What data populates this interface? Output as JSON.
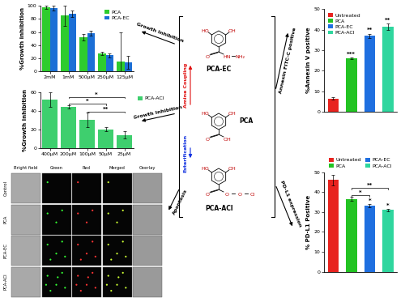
{
  "chart_data": [
    {
      "type": "bar",
      "y_label": "%Growth inhibition",
      "categories": [
        "2mM",
        "1mM",
        "500μM",
        "250μM",
        "125μM"
      ],
      "series": [
        {
          "name": "PCA",
          "color": "#2ecc2e",
          "values": [
            98,
            85,
            52,
            27,
            15
          ],
          "errors": [
            3,
            15,
            5,
            3,
            45
          ]
        },
        {
          "name": "PCA-EC",
          "color": "#1c6fd6",
          "values": [
            97,
            88,
            58,
            24,
            13
          ],
          "errors": [
            4,
            5,
            4,
            3,
            10
          ]
        }
      ],
      "ylim": [
        0,
        100
      ],
      "yticks": [
        0,
        20,
        40,
        60,
        80,
        100
      ],
      "legend": "upper right"
    },
    {
      "type": "bar",
      "y_label": "%Growth inhibition",
      "categories": [
        "400μM",
        "200μM",
        "100μM",
        "50μM",
        "25μM"
      ],
      "series": [
        {
          "name": "PCA-ACl",
          "color": "#3ecf6e",
          "values": [
            52,
            44,
            30,
            20,
            14
          ],
          "errors": [
            8,
            2,
            8,
            2,
            4
          ]
        }
      ],
      "ylim": [
        0,
        60
      ],
      "yticks": [
        0,
        20,
        40,
        60
      ],
      "legend": "right",
      "comparisons": [
        {
          "categories": [
            "100μM",
            "25μM"
          ],
          "label": "**"
        },
        {
          "categories": [
            "200μM",
            "50μM"
          ],
          "label": "*"
        },
        {
          "categories": [
            "200μM",
            "25μM"
          ],
          "label": "*"
        }
      ]
    },
    {
      "type": "bar",
      "y_label": "%Annexin V positive",
      "categories": [
        "Untreated",
        "PCA",
        "PCA-EC",
        "PCA-ACl"
      ],
      "values": [
        6.5,
        26,
        37,
        41.5
      ],
      "errors": [
        0.6,
        0.4,
        1.0,
        1.5
      ],
      "colors": [
        "#e8231f",
        "#22c322",
        "#1f6fe0",
        "#2fd69e"
      ],
      "ylim": [
        0,
        50
      ],
      "yticks": [
        0,
        10,
        20,
        30,
        40,
        50
      ],
      "tick_labels": "y",
      "legend": "upper left",
      "bar_annotations": [
        {
          "category": "PCA",
          "label": "***"
        },
        {
          "category": "PCA-EC",
          "label": "**"
        },
        {
          "category": "PCA-ACl",
          "label": "**"
        }
      ]
    },
    {
      "type": "bar",
      "y_label": "% PD-L1 Positive",
      "categories": [
        "Untreated",
        "PCA",
        "PCA-EC",
        "PCA-ACl"
      ],
      "values": [
        46,
        36.5,
        33,
        31
      ],
      "errors": [
        2.5,
        1.0,
        0.8,
        0.5
      ],
      "colors": [
        "#e8231f",
        "#22c322",
        "#1f6fe0",
        "#2fd69e"
      ],
      "ylim": [
        0,
        50
      ],
      "yticks": [
        0,
        10,
        20,
        30,
        40,
        50
      ],
      "tick_labels": "y",
      "legend": "top",
      "bar_annotations": [
        {
          "category": "PCA-EC",
          "label": "*"
        },
        {
          "category": "PCA-ACl",
          "label": "*"
        }
      ],
      "comparisons": [
        {
          "categories": [
            "PCA",
            "PCA-EC"
          ],
          "label": "*"
        },
        {
          "categories": [
            "PCA",
            "PCA-ACl"
          ],
          "label": "**"
        }
      ]
    }
  ],
  "diagram": {
    "structures": [
      {
        "label": "PCA-EC",
        "substituents": [
          "HO",
          "OH"
        ],
        "chain": [
          "O",
          "HN",
          "NH₂"
        ]
      },
      {
        "label": "PCA",
        "substituents": [
          "HO",
          "OH"
        ],
        "chain": [
          "O",
          "OH"
        ]
      },
      {
        "label": "PCA-ACl",
        "substituents": [
          "HO",
          "OH"
        ],
        "chain": [
          "O",
          "O",
          "O",
          "Cl"
        ]
      }
    ],
    "reactions": [
      {
        "label": "Amine Coupling",
        "from": "PCA",
        "to": "PCA-EC",
        "color": "#e01010"
      },
      {
        "label": "Esterification",
        "from": "PCA",
        "to": "PCA-ACl",
        "color": "#1030e0"
      }
    ],
    "outcomes": [
      "Growth Inhibition",
      "Growth Inhibition",
      "Apoptosis",
      "Annexin FITC-C positive",
      "PD-L1 expression"
    ],
    "microscopy": {
      "columns": [
        "Bright field",
        "Green",
        "Red",
        "Merged",
        "Overlay"
      ],
      "rows": [
        "Control",
        "PCA",
        "PCA-EC",
        "PCA-ACl"
      ]
    }
  }
}
